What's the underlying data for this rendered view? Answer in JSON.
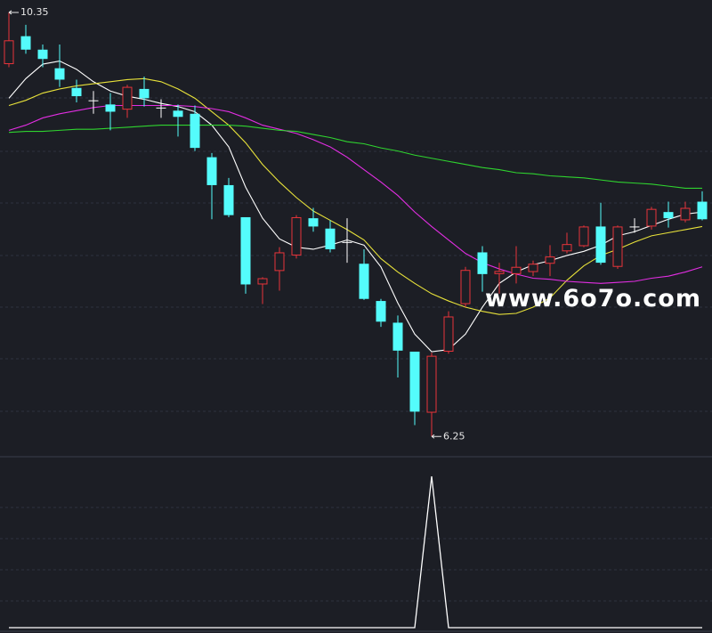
{
  "chart_data": [
    {
      "type": "candlestick",
      "open": [
        9.85,
        10.12,
        9.99,
        9.81,
        9.62,
        9.5,
        9.46,
        9.41,
        9.61,
        9.43,
        9.4,
        9.37,
        8.95,
        8.68,
        8.37,
        7.72,
        7.85,
        8.0,
        8.36,
        8.26,
        8.13,
        7.92,
        7.56,
        7.35,
        7.07,
        6.48,
        7.07,
        7.53,
        8.03,
        7.82,
        7.82,
        7.84,
        7.92,
        8.04,
        8.09,
        8.28,
        7.89,
        8.28,
        8.28,
        8.42,
        8.34,
        8.52
      ],
      "high": [
        10.35,
        10.23,
        10.04,
        10.04,
        9.7,
        9.59,
        9.57,
        9.65,
        9.73,
        9.51,
        9.46,
        9.45,
        8.99,
        8.75,
        8.37,
        7.79,
        8.08,
        8.39,
        8.46,
        8.34,
        8.36,
        8.06,
        7.58,
        7.42,
        7.07,
        7.06,
        7.46,
        7.89,
        8.09,
        7.93,
        8.09,
        7.95,
        8.1,
        8.22,
        8.29,
        8.51,
        8.29,
        8.36,
        8.47,
        8.52,
        8.52,
        8.62
      ],
      "low": [
        9.82,
        9.95,
        9.82,
        9.63,
        9.48,
        9.37,
        9.21,
        9.33,
        9.44,
        9.33,
        9.15,
        9.01,
        8.35,
        8.37,
        7.63,
        7.53,
        7.66,
        7.97,
        8.23,
        8.03,
        7.93,
        7.57,
        7.31,
        6.82,
        6.36,
        6.25,
        7.05,
        7.5,
        7.65,
        7.63,
        7.73,
        7.8,
        7.8,
        8.02,
        8.08,
        7.91,
        7.87,
        8.22,
        8.25,
        8.27,
        8.32,
        8.34
      ],
      "close": [
        10.08,
        9.99,
        9.9,
        9.7,
        9.54,
        9.5,
        9.39,
        9.63,
        9.52,
        9.43,
        9.34,
        9.04,
        8.68,
        8.39,
        7.72,
        7.78,
        8.03,
        8.37,
        8.28,
        8.06,
        8.13,
        7.58,
        7.36,
        7.08,
        6.49,
        7.03,
        7.41,
        7.86,
        7.82,
        7.85,
        7.89,
        7.92,
        7.99,
        8.11,
        8.28,
        7.93,
        8.28,
        8.28,
        8.45,
        8.36,
        8.46,
        8.35
      ],
      "up_color": "#e8343a",
      "down_color": "#54fcfc",
      "doji_color": "#ffffff",
      "ylim": [
        6.08,
        10.47
      ],
      "lines": [
        {
          "color": "#ffffff",
          "values": [
            9.52,
            9.71,
            9.85,
            9.88,
            9.8,
            9.68,
            9.59,
            9.54,
            9.51,
            9.47,
            9.44,
            9.39,
            9.26,
            9.05,
            8.66,
            8.36,
            8.16,
            8.08,
            8.06,
            8.1,
            8.15,
            8.1,
            7.89,
            7.54,
            7.24,
            7.07,
            7.09,
            7.24,
            7.5,
            7.73,
            7.84,
            7.91,
            7.95,
            8.0,
            8.04,
            8.1,
            8.19,
            8.23,
            8.29,
            8.35,
            8.4,
            8.42
          ]
        },
        {
          "color": "#e8e23a",
          "values": [
            9.45,
            9.5,
            9.57,
            9.61,
            9.64,
            9.66,
            9.68,
            9.7,
            9.71,
            9.68,
            9.61,
            9.52,
            9.39,
            9.26,
            9.09,
            8.88,
            8.71,
            8.56,
            8.43,
            8.34,
            8.25,
            8.15,
            7.97,
            7.84,
            7.73,
            7.63,
            7.56,
            7.5,
            7.46,
            7.43,
            7.44,
            7.5,
            7.59,
            7.76,
            7.9,
            8.0,
            8.06,
            8.13,
            8.19,
            8.22,
            8.25,
            8.28
          ]
        },
        {
          "color": "#e22ee2",
          "values": [
            9.21,
            9.26,
            9.33,
            9.37,
            9.4,
            9.43,
            9.45,
            9.45,
            9.45,
            9.45,
            9.45,
            9.44,
            9.42,
            9.39,
            9.33,
            9.26,
            9.22,
            9.18,
            9.12,
            9.05,
            8.95,
            8.83,
            8.71,
            8.58,
            8.42,
            8.28,
            8.15,
            8.02,
            7.93,
            7.87,
            7.82,
            7.78,
            7.77,
            7.75,
            7.74,
            7.73,
            7.74,
            7.75,
            7.78,
            7.8,
            7.84,
            7.89
          ]
        },
        {
          "color": "#2fd42f",
          "values": [
            9.19,
            9.2,
            9.2,
            9.21,
            9.22,
            9.22,
            9.23,
            9.24,
            9.25,
            9.26,
            9.26,
            9.26,
            9.26,
            9.26,
            9.25,
            9.23,
            9.21,
            9.2,
            9.17,
            9.14,
            9.1,
            9.08,
            9.04,
            9.01,
            8.97,
            8.94,
            8.91,
            8.88,
            8.85,
            8.83,
            8.8,
            8.79,
            8.77,
            8.76,
            8.75,
            8.73,
            8.71,
            8.7,
            8.69,
            8.67,
            8.65,
            8.65
          ]
        }
      ],
      "annotations": [
        {
          "label": "10.35",
          "value": 10.35,
          "index": 0
        },
        {
          "label": "6.25",
          "value": 6.25,
          "index": 25
        }
      ],
      "watermark": "www.6o7o.com"
    },
    {
      "type": "line",
      "color": "#ffffff",
      "values": [
        0,
        0,
        0,
        0,
        0,
        0,
        0,
        0,
        0,
        0,
        0,
        0,
        0,
        0,
        0,
        0,
        0,
        0,
        0,
        0,
        0,
        0,
        0,
        0,
        0,
        1,
        0,
        0,
        0,
        0,
        0,
        0,
        0,
        0,
        0,
        0,
        0,
        0,
        0,
        0,
        0,
        0
      ],
      "ylim": [
        0,
        1.13
      ]
    }
  ]
}
